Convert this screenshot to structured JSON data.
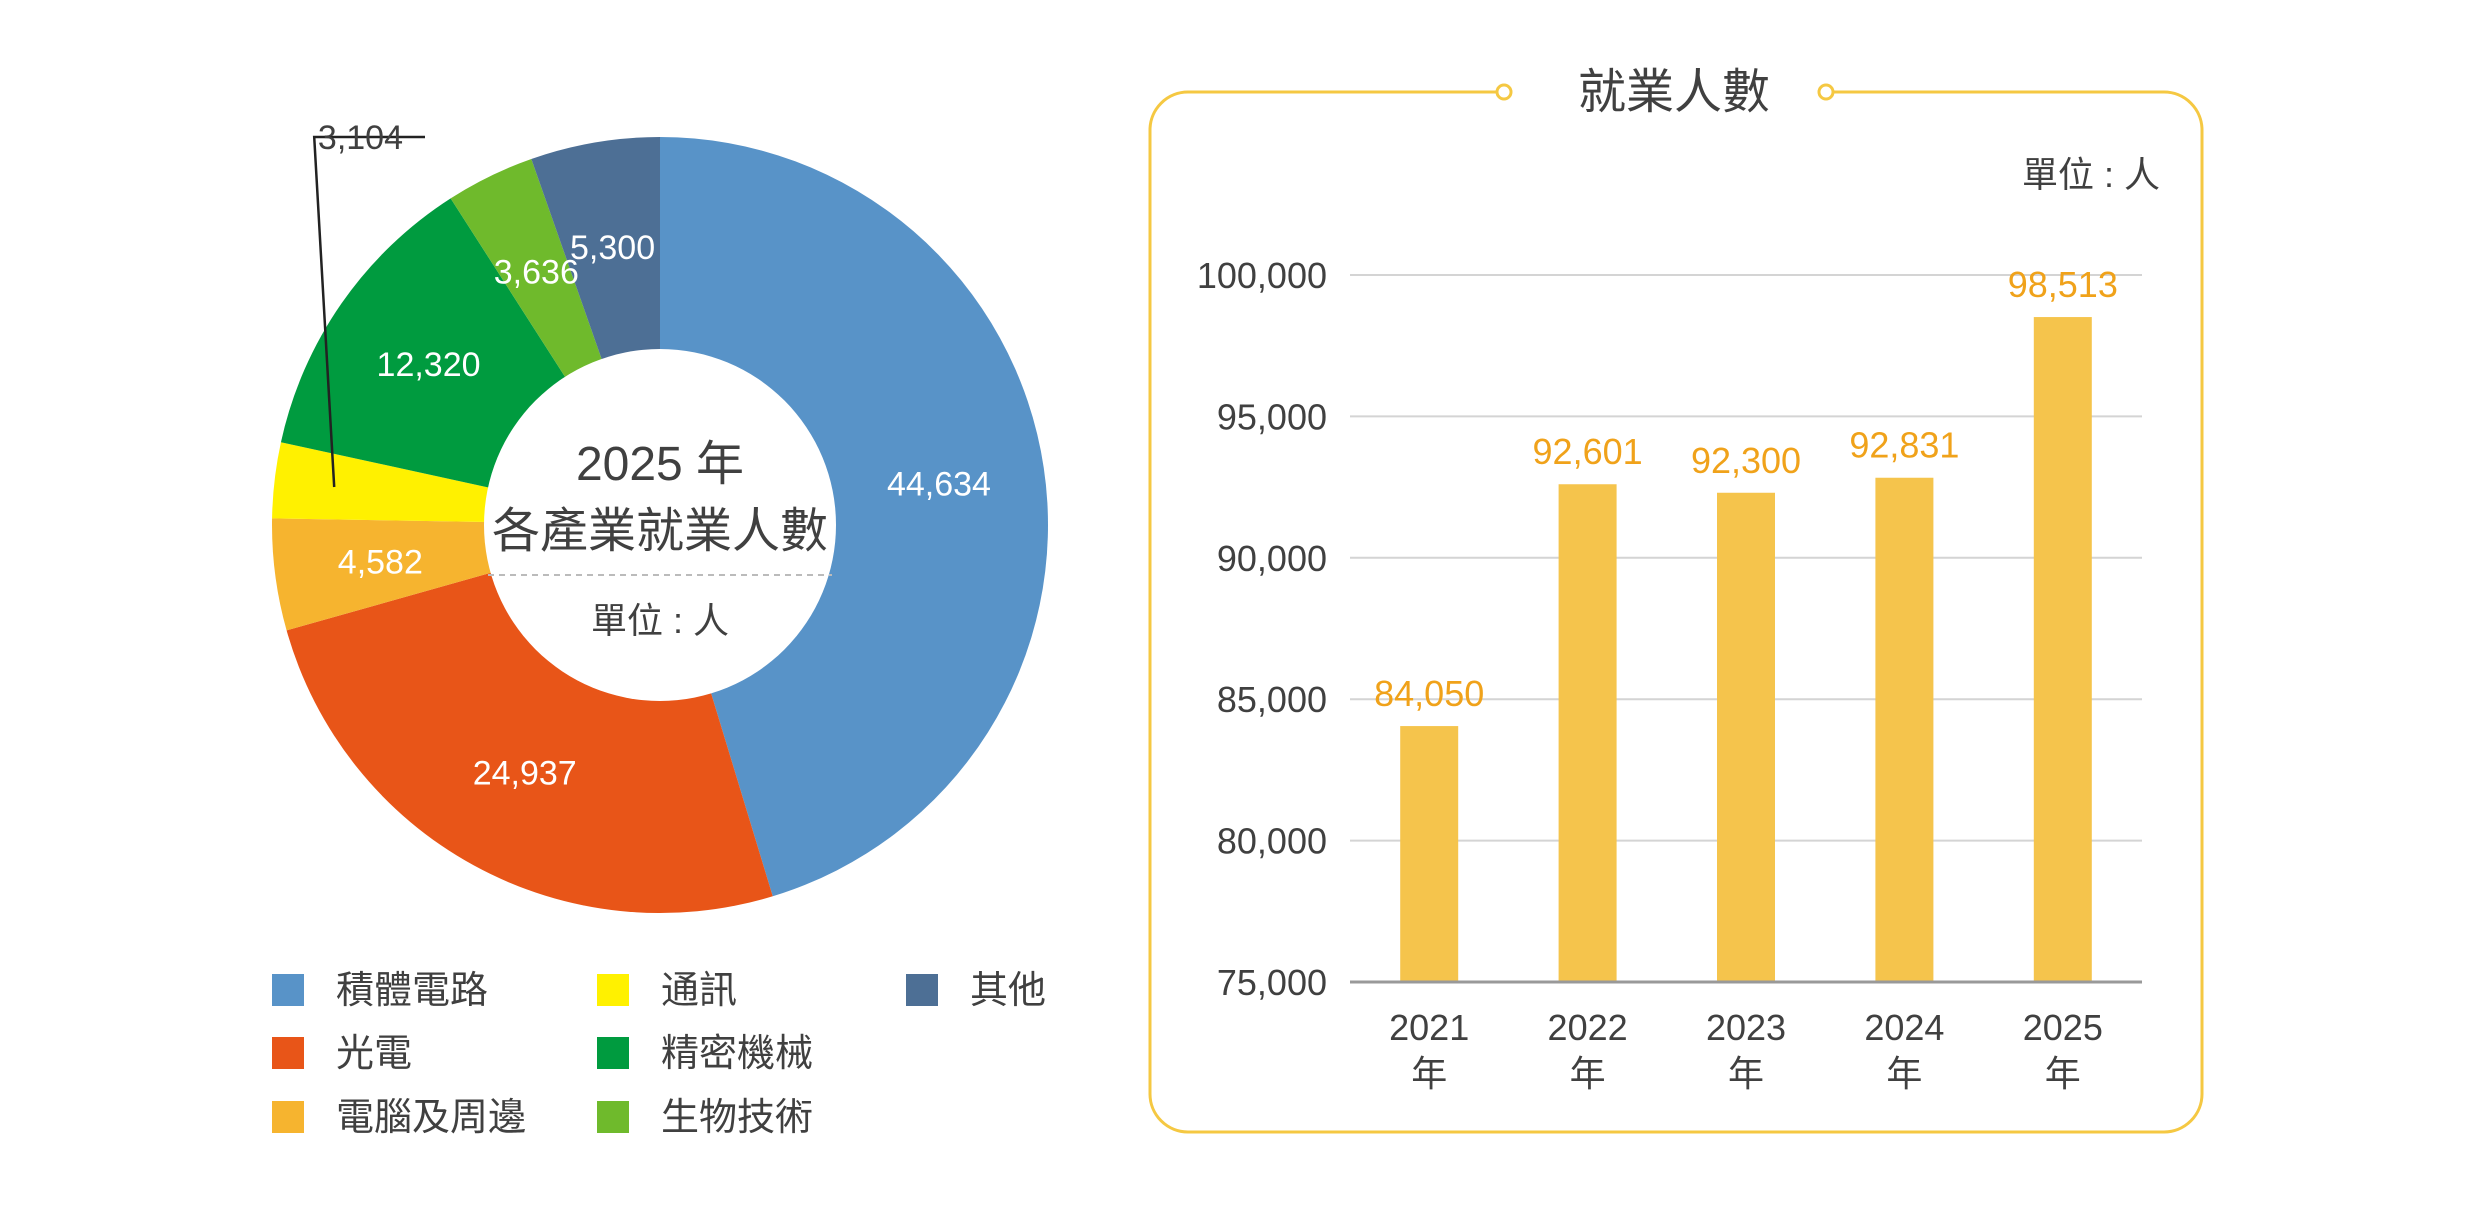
{
  "chart_data": [
    {
      "type": "pie",
      "variant": "donut",
      "title_line1": "2025 年",
      "title_line2": "各產業就業人數",
      "unit": "單位 : 人",
      "series": [
        {
          "name": "積體電路",
          "value": 44634,
          "label": "44,634",
          "color": "#5893C8"
        },
        {
          "name": "光電",
          "value": 24937,
          "label": "24,937",
          "color": "#E85518"
        },
        {
          "name": "電腦及周邊",
          "value": 4582,
          "label": "4,582",
          "color": "#F6B42F"
        },
        {
          "name": "通訊",
          "value": 3104,
          "label": "3,104",
          "color": "#FFF100"
        },
        {
          "name": "精密機械",
          "value": 12320,
          "label": "12,320",
          "color": "#009B3F"
        },
        {
          "name": "生物技術",
          "value": 3636,
          "label": "3,636",
          "color": "#6FBA2C"
        },
        {
          "name": "其他",
          "value": 5300,
          "label": "5,300",
          "color": "#4D6F95"
        }
      ],
      "legend": {
        "placement": "bottom",
        "columns": [
          [
            "積體電路",
            "光電",
            "電腦及周邊"
          ],
          [
            "通訊",
            "精密機械",
            "生物技術"
          ],
          [
            "其他"
          ]
        ]
      }
    },
    {
      "type": "bar",
      "title": "就業人數",
      "unit": "單位 : 人",
      "categories": [
        "2021 年",
        "2022 年",
        "2023 年",
        "2024 年",
        "2025 年"
      ],
      "category_lines": [
        [
          "2021",
          "年"
        ],
        [
          "2022",
          "年"
        ],
        [
          "2023",
          "年"
        ],
        [
          "2024",
          "年"
        ],
        [
          "2025",
          "年"
        ]
      ],
      "values": [
        84050,
        92601,
        92300,
        92831,
        98513
      ],
      "value_labels": [
        "84,050",
        "92,601",
        "92,300",
        "92,831",
        "98,513"
      ],
      "ylim": [
        75000,
        100000
      ],
      "yticks": [
        75000,
        80000,
        85000,
        90000,
        95000,
        100000
      ],
      "ytick_labels": [
        "75,000",
        "80,000",
        "85,000",
        "90,000",
        "95,000",
        "100,000"
      ],
      "grid": true,
      "colors": {
        "bar": "#F5C44C",
        "label": "#F0A21A",
        "frame": "#F5C842",
        "grid": "#D4D4D4",
        "axis": "#999999",
        "text": "#404040"
      }
    }
  ]
}
